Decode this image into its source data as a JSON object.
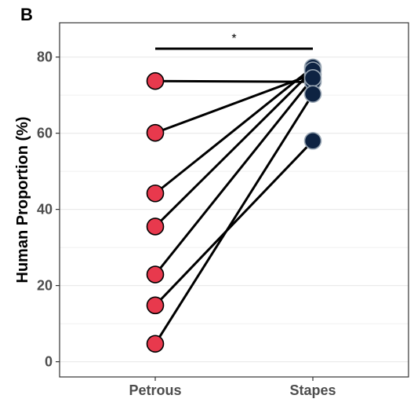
{
  "chart_data": {
    "type": "scatter",
    "panel_label": "B",
    "title": "",
    "xlabel": "",
    "ylabel": "Human Proportion (%)",
    "categories": [
      "Petrous",
      "Stapes"
    ],
    "ylim": [
      -4,
      89
    ],
    "yticks": [
      0,
      20,
      40,
      60,
      80
    ],
    "ytick_labels": [
      "0",
      "20",
      "40",
      "60",
      "80"
    ],
    "grid": true,
    "legend": "none",
    "series": [
      {
        "values": [
          73.7,
          73.5
        ]
      },
      {
        "values": [
          60.1,
          75.5
        ]
      },
      {
        "values": [
          44.2,
          77.3
        ]
      },
      {
        "values": [
          35.5,
          76.5
        ]
      },
      {
        "values": [
          22.9,
          74.5
        ]
      },
      {
        "values": [
          14.8,
          58.0
        ]
      },
      {
        "values": [
          4.7,
          70.3
        ]
      }
    ],
    "annotations": [
      {
        "text": "*",
        "from": "Petrous",
        "to": "Stapes",
        "y": 82.2
      }
    ],
    "colors": {
      "petrous": "#e8394d",
      "stapes": "#0e2342",
      "stapes_outline": "#9aa7b4",
      "petrous_outline": "#000000",
      "line": "#000000",
      "grid": "#ebebeb",
      "axis": "#333333",
      "text": "#000000",
      "tick_text": "#4d4d4d"
    }
  }
}
